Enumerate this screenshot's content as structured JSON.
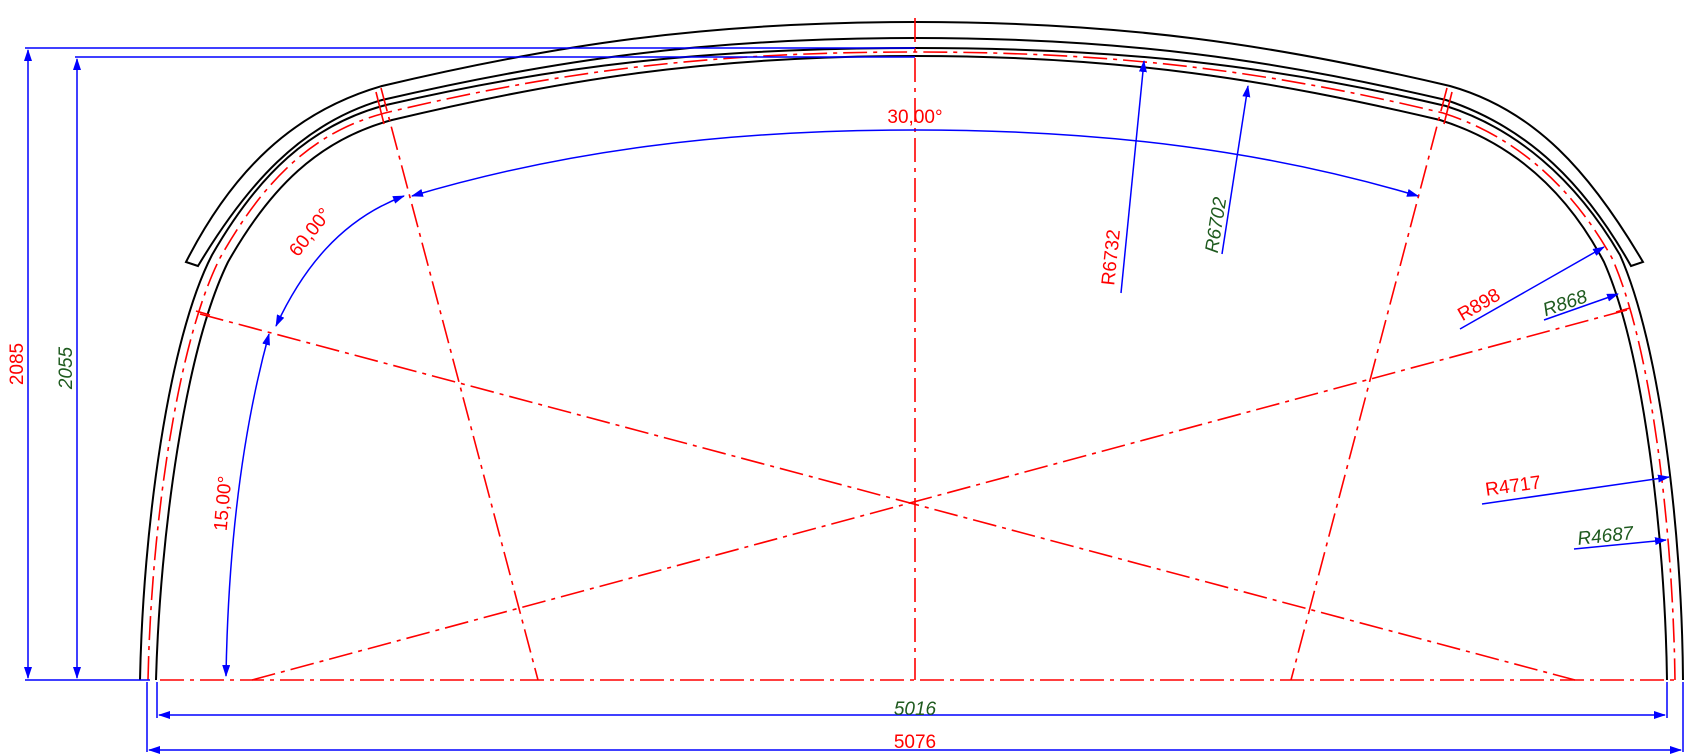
{
  "colors": {
    "outline": "#000000",
    "centerline": "#ff0000",
    "dimension": "#0000ff",
    "outer_text": "#ff0000",
    "inner_text": "#1e5a1e"
  },
  "dimensions": {
    "outer_height": "2085",
    "inner_height": "2055",
    "inner_width": "5016",
    "outer_width": "5076"
  },
  "angles": {
    "top": "30,00°",
    "upper_side": "60,00°",
    "lower_side": "15,00°"
  },
  "radii": {
    "crown_outer": "R6732",
    "crown_inner": "R6702",
    "shoulder_outer": "R898",
    "shoulder_inner": "R868",
    "wall_outer": "R4717",
    "wall_inner": "R4687"
  }
}
